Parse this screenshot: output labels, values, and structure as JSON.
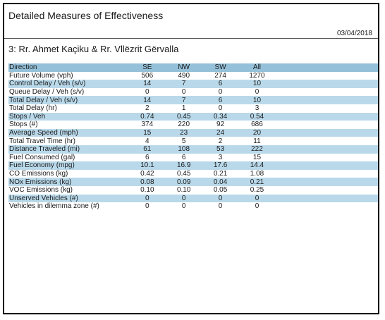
{
  "report": {
    "title": "Detailed Measures of Effectiveness",
    "date": "03/04/2018",
    "intersection": "3: Rr. Ahmet Kaçiku & Rr. Vllëzrit Gërvalla"
  },
  "table": {
    "headers": [
      "Direction",
      "SE",
      "NW",
      "SW",
      "All"
    ],
    "rows": [
      {
        "label": "Future Volume (vph)",
        "values": [
          "506",
          "490",
          "274",
          "1270"
        ],
        "shaded": false
      },
      {
        "label": "Control Delay / Veh (s/v)",
        "values": [
          "14",
          "7",
          "6",
          "10"
        ],
        "shaded": true
      },
      {
        "label": "Queue Delay / Veh (s/v)",
        "values": [
          "0",
          "0",
          "0",
          "0"
        ],
        "shaded": false
      },
      {
        "label": "Total Delay / Veh (s/v)",
        "values": [
          "14",
          "7",
          "6",
          "10"
        ],
        "shaded": true
      },
      {
        "label": "Total Delay (hr)",
        "values": [
          "2",
          "1",
          "0",
          "3"
        ],
        "shaded": false
      },
      {
        "label": "Stops / Veh",
        "values": [
          "0.74",
          "0.45",
          "0.34",
          "0.54"
        ],
        "shaded": true
      },
      {
        "label": "Stops (#)",
        "values": [
          "374",
          "220",
          "92",
          "686"
        ],
        "shaded": false
      },
      {
        "label": "Average Speed (mph)",
        "values": [
          "15",
          "23",
          "24",
          "20"
        ],
        "shaded": true
      },
      {
        "label": "Total Travel Time (hr)",
        "values": [
          "4",
          "5",
          "2",
          "11"
        ],
        "shaded": false
      },
      {
        "label": "Distance Traveled (mi)",
        "values": [
          "61",
          "108",
          "53",
          "222"
        ],
        "shaded": true
      },
      {
        "label": "Fuel Consumed (gal)",
        "values": [
          "6",
          "6",
          "3",
          "15"
        ],
        "shaded": false
      },
      {
        "label": "Fuel Economy (mpg)",
        "values": [
          "10.1",
          "16.9",
          "17.6",
          "14.4"
        ],
        "shaded": true
      },
      {
        "label": "CO Emissions (kg)",
        "values": [
          "0.42",
          "0.45",
          "0.21",
          "1.08"
        ],
        "shaded": false
      },
      {
        "label": "NOx Emissions (kg)",
        "values": [
          "0.08",
          "0.09",
          "0.04",
          "0.21"
        ],
        "shaded": true
      },
      {
        "label": "VOC Emissions (kg)",
        "values": [
          "0.10",
          "0.10",
          "0.05",
          "0.25"
        ],
        "shaded": false
      },
      {
        "label": "Unserved Vehicles (#)",
        "values": [
          "0",
          "0",
          "0",
          "0"
        ],
        "shaded": true
      },
      {
        "label": "Vehicles in dilemma zone (#)",
        "values": [
          "0",
          "0",
          "0",
          "0"
        ],
        "shaded": false
      }
    ]
  }
}
